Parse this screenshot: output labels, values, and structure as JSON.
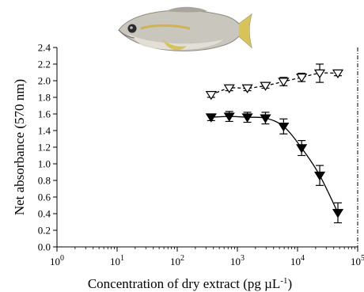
{
  "figure": {
    "image": "fish-photo",
    "icon_names": [
      "fish-image"
    ]
  },
  "chart_data": {
    "type": "scatter",
    "xlabel": "Concentration of dry extract (pg µL⁻¹)",
    "ylabel": "Net absorbance (570 nm)",
    "x_scale": "log",
    "xlim": [
      1,
      100000
    ],
    "ylim": [
      0.0,
      2.4
    ],
    "x_ticks": [
      1,
      10,
      100,
      1000,
      10000,
      100000
    ],
    "x_tick_labels": [
      "10^0",
      "10^1",
      "10^2",
      "10^3",
      "10^4",
      "10^5"
    ],
    "y_ticks": [
      0.0,
      0.2,
      0.4,
      0.6,
      0.8,
      1.0,
      1.2,
      1.4,
      1.6,
      1.8,
      2.0,
      2.2,
      2.4
    ],
    "y_tick_labels": [
      "0.0",
      "0.2",
      "0.4",
      "0.6",
      "0.8",
      "1.0",
      "1.2",
      "1.4",
      "1.6",
      "1.8",
      "2.0",
      "2.2",
      "2.4"
    ],
    "grid": false,
    "reference_line": {
      "x": 100000,
      "style": "dash-dot"
    },
    "series": [
      {
        "marker": "open-triangle-down",
        "line": "dashed",
        "x": [
          366,
          732,
          1464,
          2930,
          5860,
          11700,
          23400,
          46900
        ],
        "y": [
          1.83,
          1.91,
          1.91,
          1.94,
          1.99,
          2.04,
          2.09,
          2.09
        ],
        "err": [
          0.03,
          0.03,
          0.03,
          0.03,
          0.05,
          0.05,
          0.11,
          0.03
        ]
      },
      {
        "marker": "filled-triangle-down",
        "line": "solid",
        "x": [
          366,
          732,
          1464,
          2930,
          5860,
          11700,
          23400,
          46900
        ],
        "y": [
          1.56,
          1.57,
          1.56,
          1.55,
          1.45,
          1.19,
          0.86,
          0.41
        ],
        "err": [
          0.04,
          0.06,
          0.06,
          0.07,
          0.09,
          0.09,
          0.12,
          0.12
        ]
      }
    ]
  }
}
